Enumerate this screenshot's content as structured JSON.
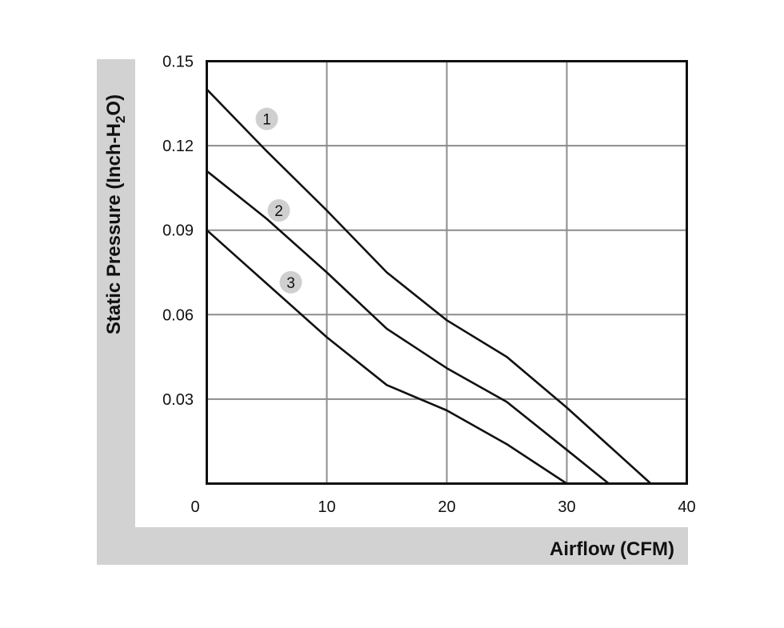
{
  "chart_data": {
    "type": "line",
    "xlabel": "Airflow (CFM)",
    "ylabel": {
      "prefix": "Static Pressure (Inch-H",
      "subscript": "2",
      "suffix": "O)"
    },
    "xlim": [
      0,
      40
    ],
    "ylim": [
      0,
      0.15
    ],
    "x_ticks": [
      "0",
      "10",
      "20",
      "30",
      "40"
    ],
    "y_ticks": [
      "0.15",
      "0.12",
      "0.09",
      "0.06",
      "0.03"
    ],
    "grid": true,
    "colors": {
      "band": "#d2d2d2",
      "grid": "#8c8c8c",
      "axis": "#111111",
      "curve": "#111111",
      "marker": "#cfcfcf"
    },
    "series": [
      {
        "name": "1",
        "label_at": [
          5.0,
          0.1295
        ],
        "x": [
          0,
          5,
          10,
          15,
          20,
          25,
          30,
          37
        ],
        "y": [
          0.14,
          0.118,
          0.097,
          0.075,
          0.058,
          0.045,
          0.027,
          0
        ]
      },
      {
        "name": "2",
        "label_at": [
          6.0,
          0.097
        ],
        "x": [
          0,
          5,
          10,
          15,
          20,
          25,
          30,
          33.5
        ],
        "y": [
          0.111,
          0.094,
          0.075,
          0.055,
          0.041,
          0.029,
          0.012,
          0
        ]
      },
      {
        "name": "3",
        "label_at": [
          7.0,
          0.0715
        ],
        "x": [
          0,
          5,
          10,
          15,
          20,
          25,
          30
        ],
        "y": [
          0.09,
          0.071,
          0.052,
          0.035,
          0.026,
          0.014,
          0
        ]
      }
    ]
  }
}
